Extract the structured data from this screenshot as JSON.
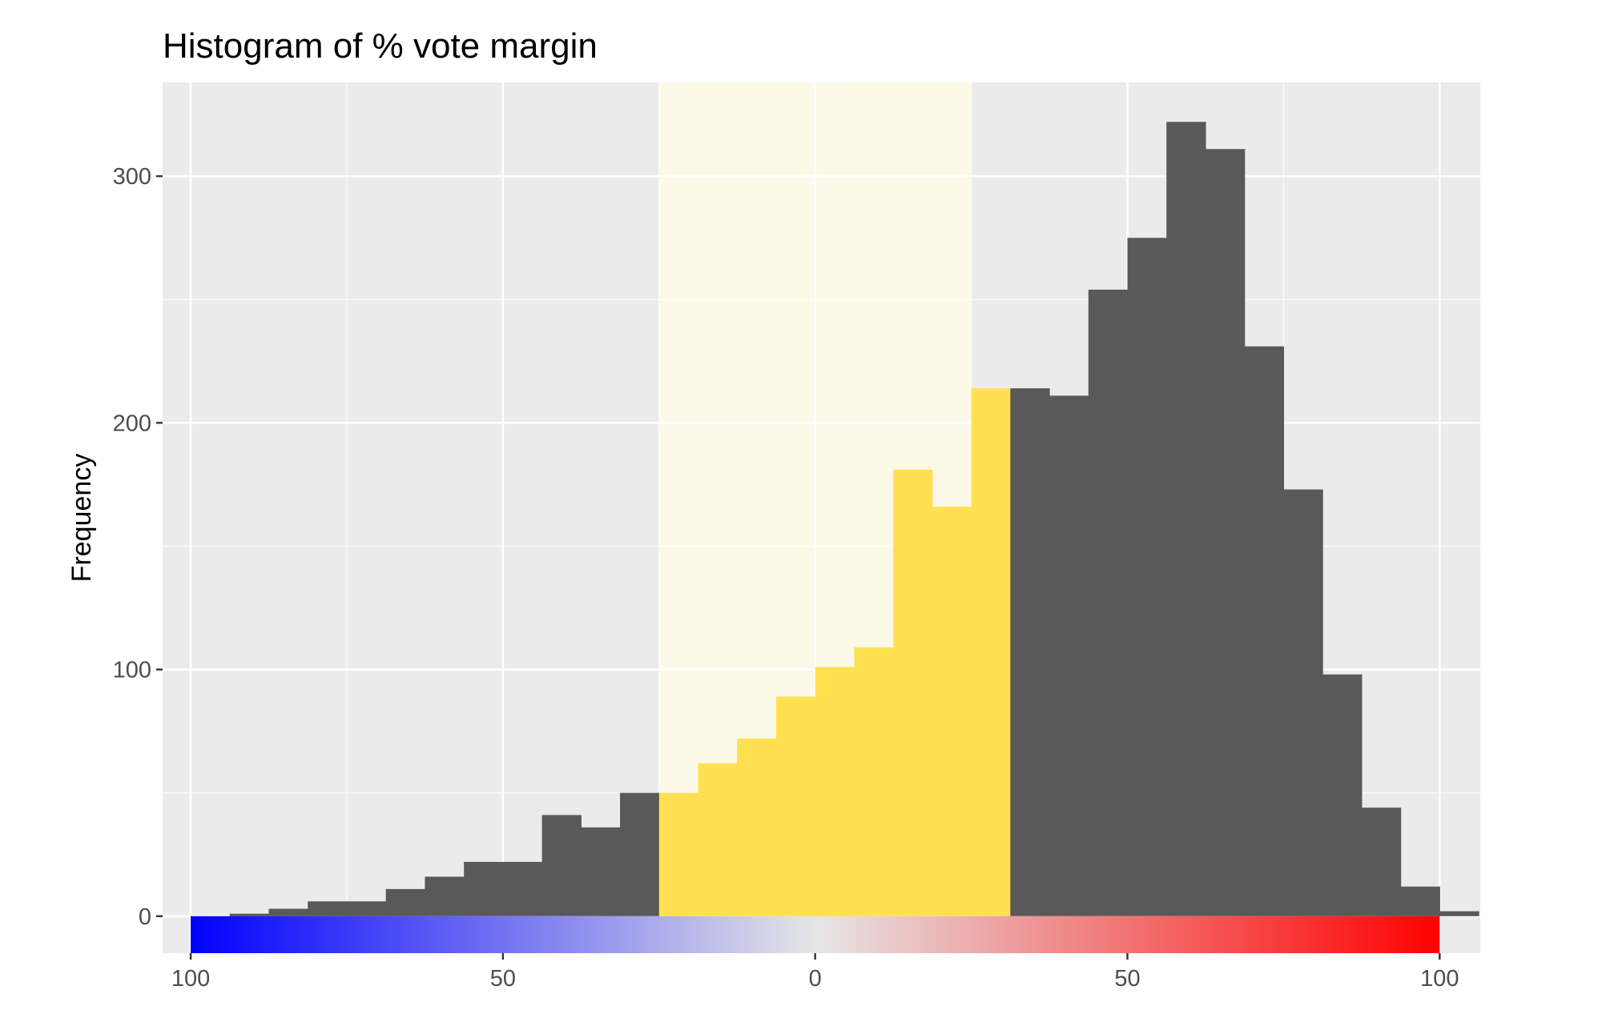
{
  "chart_data": {
    "type": "bar",
    "title": "Histogram of % vote margin",
    "xlabel": "",
    "ylabel": "Frequency",
    "xlim": [
      -104.5,
      106.5
    ],
    "ylim": [
      -15,
      338
    ],
    "x_ticks": [
      {
        "value": -100,
        "label": "100"
      },
      {
        "value": -50,
        "label": "50"
      },
      {
        "value": 0,
        "label": "0"
      },
      {
        "value": 50,
        "label": "50"
      },
      {
        "value": 100,
        "label": "100"
      }
    ],
    "y_ticks": [
      {
        "value": 0,
        "label": "0"
      },
      {
        "value": 100,
        "label": "100"
      },
      {
        "value": 200,
        "label": "200"
      },
      {
        "value": 300,
        "label": "300"
      }
    ],
    "y_minor_ticks": [
      50,
      150,
      250
    ],
    "x_minor_ticks": [
      -75,
      -25,
      25,
      75
    ],
    "grid": true,
    "bin_width": 6.25,
    "bins": [
      {
        "x": -90.625,
        "value": 1,
        "highlight": false
      },
      {
        "x": -84.375,
        "value": 3,
        "highlight": false
      },
      {
        "x": -78.125,
        "value": 6,
        "highlight": false
      },
      {
        "x": -71.875,
        "value": 6,
        "highlight": false
      },
      {
        "x": -65.625,
        "value": 11,
        "highlight": false
      },
      {
        "x": -59.375,
        "value": 16,
        "highlight": false
      },
      {
        "x": -53.125,
        "value": 22,
        "highlight": false
      },
      {
        "x": -46.875,
        "value": 22,
        "highlight": false
      },
      {
        "x": -40.625,
        "value": 41,
        "highlight": false
      },
      {
        "x": -34.375,
        "value": 36,
        "highlight": false
      },
      {
        "x": -28.125,
        "value": 50,
        "highlight": false
      },
      {
        "x": -21.875,
        "value": 50,
        "highlight": true
      },
      {
        "x": -15.625,
        "value": 62,
        "highlight": true
      },
      {
        "x": -9.375,
        "value": 72,
        "highlight": true
      },
      {
        "x": -3.125,
        "value": 89,
        "highlight": true
      },
      {
        "x": 3.125,
        "value": 101,
        "highlight": true
      },
      {
        "x": 9.375,
        "value": 109,
        "highlight": true
      },
      {
        "x": 15.625,
        "value": 181,
        "highlight": true
      },
      {
        "x": 21.875,
        "value": 166,
        "highlight": true
      },
      {
        "x": 28.125,
        "value": 214,
        "highlight": true
      },
      {
        "x": 34.375,
        "value": 214,
        "highlight": false
      },
      {
        "x": 40.625,
        "value": 211,
        "highlight": false
      },
      {
        "x": 46.875,
        "value": 254,
        "highlight": false
      },
      {
        "x": 53.125,
        "value": 275,
        "highlight": false
      },
      {
        "x": 59.375,
        "value": 322,
        "highlight": false
      },
      {
        "x": 65.625,
        "value": 311,
        "highlight": false
      },
      {
        "x": 71.875,
        "value": 231,
        "highlight": false
      },
      {
        "x": 78.125,
        "value": 173,
        "highlight": false
      },
      {
        "x": 84.375,
        "value": 98,
        "highlight": false
      },
      {
        "x": 90.625,
        "value": 44,
        "highlight": false
      },
      {
        "x": 96.875,
        "value": 12,
        "highlight": false
      },
      {
        "x": 103.125,
        "value": 2,
        "highlight": false
      }
    ],
    "highlight_band": {
      "from": -25,
      "to": 25
    },
    "color_bar": {
      "from": -100,
      "to": 100,
      "colors": [
        "#0000ff",
        "#e6e6e6",
        "#ff0000"
      ]
    },
    "colors": {
      "panel_background": "#ebebeb",
      "grid": "#ffffff",
      "bar": "#595959",
      "bar_highlight": "#ffe050",
      "band_fill": "#fdf9e8"
    }
  }
}
